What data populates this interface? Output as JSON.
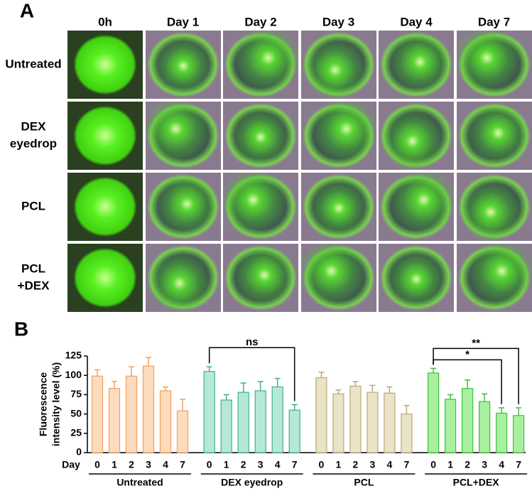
{
  "panel_a": {
    "label": "A",
    "columns": [
      "0h",
      "Day 1",
      "Day 2",
      "Day 3",
      "Day 4",
      "Day 7"
    ],
    "rows": [
      [
        "Untreated"
      ],
      [
        "DEX",
        "eyedrop"
      ],
      [
        "PCL"
      ],
      [
        "PCL",
        "+DEX"
      ]
    ]
  },
  "chart_data": {
    "type": "bar",
    "label": "B",
    "y_label": [
      "Fluorescence",
      "intensity level (%)"
    ],
    "x_label": "Day",
    "categories": [
      "0",
      "1",
      "2",
      "3",
      "4",
      "7"
    ],
    "ylim": [
      0,
      125
    ],
    "yticks": [
      0,
      25,
      50,
      75,
      100,
      125
    ],
    "series": [
      {
        "name": "Untreated",
        "color": "#fcdcbc",
        "edge": "#f0a060",
        "values": [
          99,
          83,
          99,
          112,
          80,
          54
        ],
        "errors": [
          8,
          9,
          12,
          11,
          5,
          15
        ]
      },
      {
        "name": "DEX eyedrop",
        "color": "#b6e8d8",
        "edge": "#40b090",
        "values": [
          105,
          68,
          78,
          80,
          85,
          55
        ],
        "errors": [
          6,
          7,
          12,
          12,
          11,
          7
        ]
      },
      {
        "name": "PCL",
        "color": "#ebe3c6",
        "edge": "#b8a878",
        "values": [
          97,
          76,
          86,
          78,
          77,
          50
        ],
        "errors": [
          7,
          5,
          6,
          9,
          8,
          11
        ]
      },
      {
        "name": "PCL+DEX",
        "color": "#a8f0a0",
        "edge": "#40c040",
        "values": [
          103,
          69,
          83,
          66,
          51,
          48
        ],
        "errors": [
          6,
          6,
          11,
          10,
          7,
          10
        ]
      }
    ],
    "annotations": [
      {
        "series": "DEX eyedrop",
        "from": "0",
        "to": "7",
        "label": "ns"
      },
      {
        "series": "PCL+DEX",
        "from": "0",
        "to": "4",
        "label": "*"
      },
      {
        "series": "PCL+DEX",
        "from": "0",
        "to": "7",
        "label": "**"
      }
    ]
  }
}
